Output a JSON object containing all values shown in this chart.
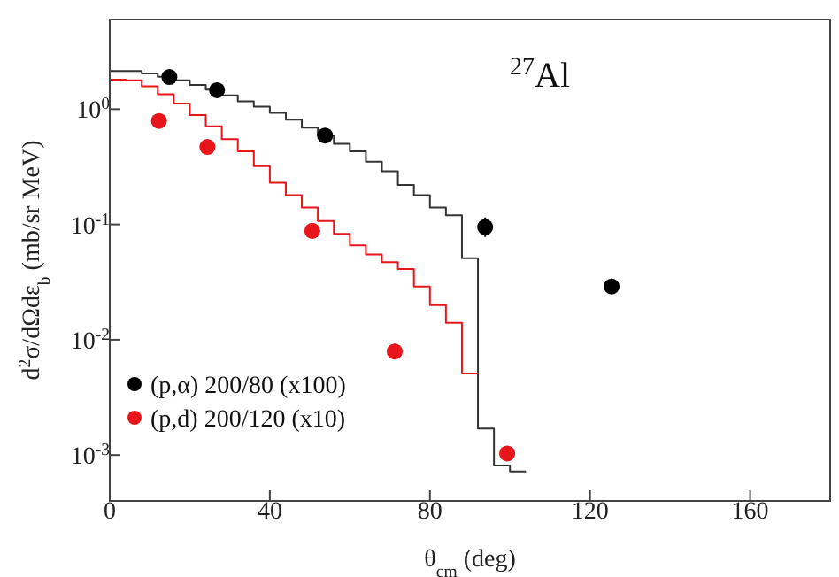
{
  "chart_data": {
    "type": "scatter",
    "xlabel": "θ$_{cm}$ (deg)",
    "ylabel": "d$^{2}$σ/dΩdε$_{b}$ (mb/sr MeV)",
    "annotations": [
      "$^{27}$Al"
    ],
    "xlim": [
      0,
      180
    ],
    "xticks": [
      0,
      40,
      80,
      120,
      160
    ],
    "ylim": [
      0.0004,
      6
    ],
    "log": "y",
    "yticks": [
      {
        "value": 0.001,
        "label": "10$^{-3}$"
      },
      {
        "value": 0.01,
        "label": "10$^{-2}$"
      },
      {
        "value": 0.1,
        "label": "10$^{-1}$"
      },
      {
        "value": 1,
        "label": "10$^{0}$"
      }
    ],
    "legend": "left",
    "grid": false,
    "series": [
      {
        "marker": "circle",
        "name": "(p,α) 200/80 (x100)",
        "color": "#000000",
        "x": [
          14.9,
          26.8,
          53.8,
          93.8,
          125.4
        ],
        "values": [
          1.9,
          1.46,
          0.59,
          0.095,
          0.029
        ],
        "errors": [
          null,
          null,
          null,
          [
            0.078,
            0.115
          ],
          [
            0.025,
            0.034
          ]
        ]
      },
      {
        "marker": "circle",
        "name": "(p,d) 200/120 (x10)",
        "color": "#e8151b",
        "x": [
          12.3,
          24.4,
          50.6,
          71.2,
          99.3
        ],
        "values": [
          0.79,
          0.47,
          0.088,
          0.0079,
          0.00103
        ],
        "errors": [
          null,
          null,
          null,
          [
            0.0068,
            0.0092
          ],
          [
            0.0009,
            0.00118
          ]
        ]
      },
      {
        "type": "step",
        "color": "#333333",
        "x": [
          0,
          4,
          8,
          12,
          16,
          20,
          24,
          28,
          32,
          36,
          40,
          44,
          48,
          52,
          56,
          60,
          64,
          68,
          72,
          76,
          80,
          84,
          88,
          92,
          96,
          100,
          104
        ],
        "values": [
          2.14,
          2.14,
          2.04,
          1.91,
          1.78,
          1.62,
          1.48,
          1.32,
          1.17,
          1.05,
          0.93,
          0.81,
          0.69,
          0.59,
          0.5,
          0.43,
          0.35,
          0.29,
          0.22,
          0.18,
          0.14,
          0.12,
          0.051,
          0.0017,
          0.00081,
          0.00072,
          0.00072
        ]
      },
      {
        "type": "step",
        "color": "#e8151b",
        "x": [
          0,
          4,
          8,
          12,
          16,
          20,
          24,
          28,
          32,
          36,
          40,
          44,
          48,
          52,
          56,
          60,
          64,
          68,
          72,
          76,
          80,
          84,
          88,
          92
        ],
        "values": [
          1.8,
          1.78,
          1.58,
          1.35,
          1.12,
          0.89,
          0.71,
          0.55,
          0.43,
          0.32,
          0.23,
          0.18,
          0.14,
          0.107,
          0.083,
          0.066,
          0.055,
          0.047,
          0.041,
          0.029,
          0.02,
          0.014,
          0.0051,
          0.0051
        ]
      }
    ]
  }
}
